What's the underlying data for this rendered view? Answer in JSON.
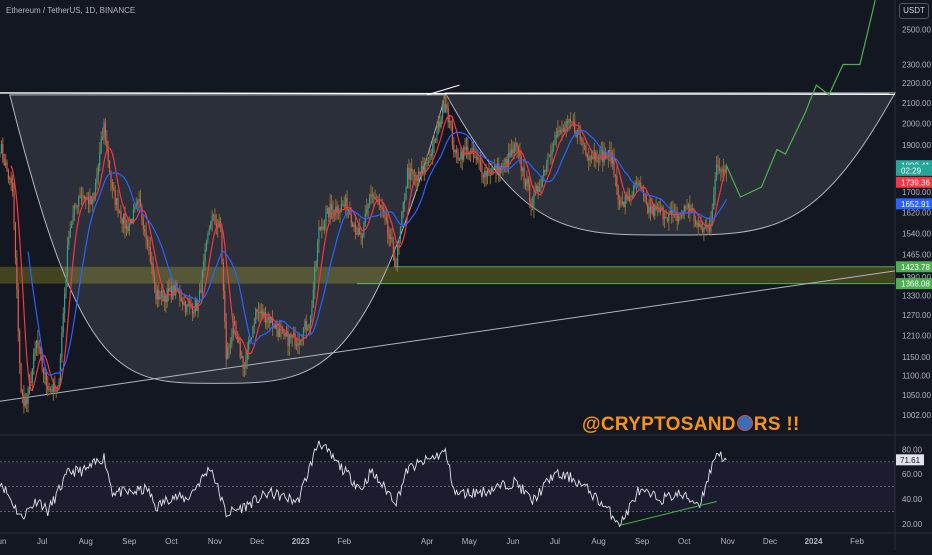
{
  "header": {
    "symbol_title": "Ethereum / TetherUS, 1D, BINANCE",
    "currency_button": "USDT"
  },
  "watermark": {
    "text_before": "@CRYPTOSAND",
    "text_after": "RS !!",
    "icon": "coin-icon"
  },
  "colors": {
    "background": "#131722",
    "candle_up": "#26a69a",
    "candle_down": "#ef5350",
    "wick": "#8a6d3b",
    "fast_ma": "#f23645",
    "slow_ma": "#2962ff",
    "projection": "#4caf50",
    "support_zone": "#6b6b1f",
    "cup_fill": "#d1d4dc",
    "rsi_line": "#e0e3eb",
    "accent_watermark": "#f7931a"
  },
  "chart_data": {
    "type": "candlestick",
    "title": "Ethereum / TetherUS, 1D, BINANCE",
    "price_axis": {
      "scale": "log",
      "ylim": [
        960,
        2680
      ],
      "tick_labels": [
        "2500.00",
        "2300.00",
        "2200.00",
        "2100.00",
        "2000.00",
        "1900.00",
        "1700.00",
        "1620.00",
        "1540.00",
        "1465.00",
        "1390.00",
        "1330.00",
        "1270.00",
        "1210.00",
        "1150.00",
        "1100.00",
        "1050.00",
        "1002.00"
      ]
    },
    "time_axis": {
      "start": "2022-06-01",
      "end": "2024-02-28",
      "tick_labels": [
        {
          "label": "Jun",
          "date": "2022-06-01"
        },
        {
          "label": "Jul",
          "date": "2022-07-01"
        },
        {
          "label": "Aug",
          "date": "2022-08-01"
        },
        {
          "label": "Sep",
          "date": "2022-09-01"
        },
        {
          "label": "Oct",
          "date": "2022-10-01"
        },
        {
          "label": "Nov",
          "date": "2022-11-01"
        },
        {
          "label": "Dec",
          "date": "2022-12-01"
        },
        {
          "label": "2023",
          "date": "2023-01-01",
          "bold": true
        },
        {
          "label": "Feb",
          "date": "2023-02-01"
        },
        {
          "label": "Apr",
          "date": "2023-04-01"
        },
        {
          "label": "May",
          "date": "2023-05-01"
        },
        {
          "label": "Jun",
          "date": "2023-06-01"
        },
        {
          "label": "Jul",
          "date": "2023-07-01"
        },
        {
          "label": "Aug",
          "date": "2023-08-01"
        },
        {
          "label": "Sep",
          "date": "2023-09-01"
        },
        {
          "label": "Oct",
          "date": "2023-10-01"
        },
        {
          "label": "Nov",
          "date": "2023-11-01"
        },
        {
          "label": "Dec",
          "date": "2023-12-01"
        },
        {
          "label": "2024",
          "date": "2024-01-01",
          "bold": true
        },
        {
          "label": "Feb",
          "date": "2024-02-01"
        }
      ]
    },
    "price_path": [
      [
        "2022-06-01",
        1900
      ],
      [
        "2022-06-10",
        1700
      ],
      [
        "2022-06-16",
        1050
      ],
      [
        "2022-06-20",
        1030
      ],
      [
        "2022-06-27",
        1190
      ],
      [
        "2022-07-04",
        1080
      ],
      [
        "2022-07-12",
        1050
      ],
      [
        "2022-07-20",
        1550
      ],
      [
        "2022-07-28",
        1700
      ],
      [
        "2022-08-06",
        1650
      ],
      [
        "2022-08-14",
        1990
      ],
      [
        "2022-08-20",
        1700
      ],
      [
        "2022-08-30",
        1560
      ],
      [
        "2022-09-08",
        1650
      ],
      [
        "2022-09-14",
        1520
      ],
      [
        "2022-09-20",
        1330
      ],
      [
        "2022-09-26",
        1330
      ],
      [
        "2022-10-05",
        1350
      ],
      [
        "2022-10-12",
        1290
      ],
      [
        "2022-10-20",
        1300
      ],
      [
        "2022-10-29",
        1600
      ],
      [
        "2022-11-05",
        1560
      ],
      [
        "2022-11-09",
        1150
      ],
      [
        "2022-11-14",
        1230
      ],
      [
        "2022-11-22",
        1120
      ],
      [
        "2022-11-30",
        1280
      ],
      [
        "2022-12-10",
        1260
      ],
      [
        "2022-12-20",
        1200
      ],
      [
        "2022-12-30",
        1200
      ],
      [
        "2023-01-08",
        1260
      ],
      [
        "2023-01-14",
        1550
      ],
      [
        "2023-01-22",
        1630
      ],
      [
        "2023-02-03",
        1650
      ],
      [
        "2023-02-13",
        1510
      ],
      [
        "2023-02-20",
        1700
      ],
      [
        "2023-02-28",
        1620
      ],
      [
        "2023-03-10",
        1430
      ],
      [
        "2023-03-18",
        1780
      ],
      [
        "2023-03-25",
        1750
      ],
      [
        "2023-04-05",
        1880
      ],
      [
        "2023-04-14",
        2120
      ],
      [
        "2023-04-21",
        1850
      ],
      [
        "2023-04-30",
        1880
      ],
      [
        "2023-05-12",
        1780
      ],
      [
        "2023-05-25",
        1800
      ],
      [
        "2023-06-03",
        1890
      ],
      [
        "2023-06-15",
        1650
      ],
      [
        "2023-06-20",
        1730
      ],
      [
        "2023-06-30",
        1930
      ],
      [
        "2023-07-13",
        2000
      ],
      [
        "2023-07-25",
        1860
      ],
      [
        "2023-08-10",
        1850
      ],
      [
        "2023-08-17",
        1640
      ],
      [
        "2023-08-29",
        1730
      ],
      [
        "2023-09-05",
        1630
      ],
      [
        "2023-09-15",
        1620
      ],
      [
        "2023-09-27",
        1600
      ],
      [
        "2023-10-04",
        1650
      ],
      [
        "2023-10-12",
        1550
      ],
      [
        "2023-10-19",
        1570
      ],
      [
        "2023-10-24",
        1790
      ],
      [
        "2023-10-31",
        1809.41
      ]
    ],
    "series": [
      {
        "name": "fast_ma",
        "color": "#f23645",
        "kind": "ma",
        "period": 9
      },
      {
        "name": "slow_ma",
        "color": "#2962ff",
        "kind": "ma",
        "period": 21
      },
      {
        "name": "projection",
        "color": "#4caf50",
        "kind": "path",
        "points": [
          [
            "2023-10-31",
            1810
          ],
          [
            "2023-11-10",
            1680
          ],
          [
            "2023-11-25",
            1720
          ],
          [
            "2023-12-06",
            1880
          ],
          [
            "2023-12-12",
            1860
          ],
          [
            "2023-12-26",
            2050
          ],
          [
            "2024-01-03",
            2190
          ],
          [
            "2024-01-12",
            2140
          ],
          [
            "2024-01-22",
            2300
          ],
          [
            "2024-02-03",
            2300
          ],
          [
            "2024-02-14",
            2680
          ]
        ]
      }
    ],
    "price_labels": [
      {
        "text": "1809.41",
        "value": 1809.41,
        "color": "#26a69a"
      },
      {
        "text": "02:29",
        "value": 1789.5,
        "color": "#26a69a"
      },
      {
        "text": "1739.36",
        "value": 1739.36,
        "color": "#f23645"
      },
      {
        "text": "1652.91",
        "value": 1652.91,
        "color": "#2962ff"
      },
      {
        "text": "1423.78",
        "value": 1423.78,
        "color": "#4caf50"
      },
      {
        "text": "1368.08",
        "value": 1368.08,
        "color": "#4caf50"
      }
    ],
    "annotations": {
      "resistance_line": {
        "y": [
          2150,
          2143
        ],
        "dates": [
          "2022-06-01",
          "2024-02-28"
        ]
      },
      "support_zone": {
        "ylim": [
          1368.08,
          1423.78
        ],
        "dates": [
          "2022-06-01",
          "2024-02-28"
        ]
      },
      "trendline": {
        "points": [
          [
            "2022-06-01",
            1035
          ],
          [
            "2024-02-28",
            1410
          ]
        ]
      },
      "cup_left": {
        "rim": [
          [
            "2022-06-08",
            2140
          ],
          [
            "2023-04-14",
            2140
          ]
        ],
        "bottom": [
          "2022-11-01",
          1080
        ]
      },
      "cup_right": {
        "rim": [
          [
            "2023-04-14",
            2150
          ],
          [
            "2024-02-28",
            2150
          ]
        ],
        "bottom": [
          "2023-09-20",
          1535
        ]
      }
    },
    "rsi": {
      "name": "RSI",
      "ylim": [
        15,
        90
      ],
      "tick_labels": [
        "80.00",
        "60.00",
        "40.00",
        "20.00"
      ],
      "band": [
        30,
        70
      ],
      "current_label": "71.61",
      "current_value": 71.61,
      "path": [
        [
          "2022-06-01",
          55
        ],
        [
          "2022-06-16",
          25
        ],
        [
          "2022-06-28",
          40
        ],
        [
          "2022-07-05",
          30
        ],
        [
          "2022-07-20",
          62
        ],
        [
          "2022-08-01",
          63
        ],
        [
          "2022-08-14",
          74
        ],
        [
          "2022-08-20",
          46
        ],
        [
          "2022-09-01",
          45
        ],
        [
          "2022-09-14",
          48
        ],
        [
          "2022-09-20",
          33
        ],
        [
          "2022-10-01",
          42
        ],
        [
          "2022-10-12",
          40
        ],
        [
          "2022-10-29",
          66
        ],
        [
          "2022-11-09",
          28
        ],
        [
          "2022-11-22",
          34
        ],
        [
          "2022-12-10",
          45
        ],
        [
          "2022-12-30",
          38
        ],
        [
          "2023-01-14",
          87
        ],
        [
          "2023-01-22",
          75
        ],
        [
          "2023-02-13",
          48
        ],
        [
          "2023-02-20",
          62
        ],
        [
          "2023-03-10",
          38
        ],
        [
          "2023-03-18",
          64
        ],
        [
          "2023-04-14",
          78
        ],
        [
          "2023-04-21",
          44
        ],
        [
          "2023-05-12",
          46
        ],
        [
          "2023-06-03",
          54
        ],
        [
          "2023-06-15",
          38
        ],
        [
          "2023-06-30",
          60
        ],
        [
          "2023-07-13",
          57
        ],
        [
          "2023-07-25",
          47
        ],
        [
          "2023-08-17",
          20
        ],
        [
          "2023-08-29",
          46
        ],
        [
          "2023-09-15",
          40
        ],
        [
          "2023-09-27",
          44
        ],
        [
          "2023-10-12",
          36
        ],
        [
          "2023-10-24",
          78
        ],
        [
          "2023-10-31",
          71.61
        ]
      ],
      "divergence_line": [
        [
          "2023-08-17",
          19
        ],
        [
          "2023-10-24",
          38
        ]
      ]
    }
  }
}
